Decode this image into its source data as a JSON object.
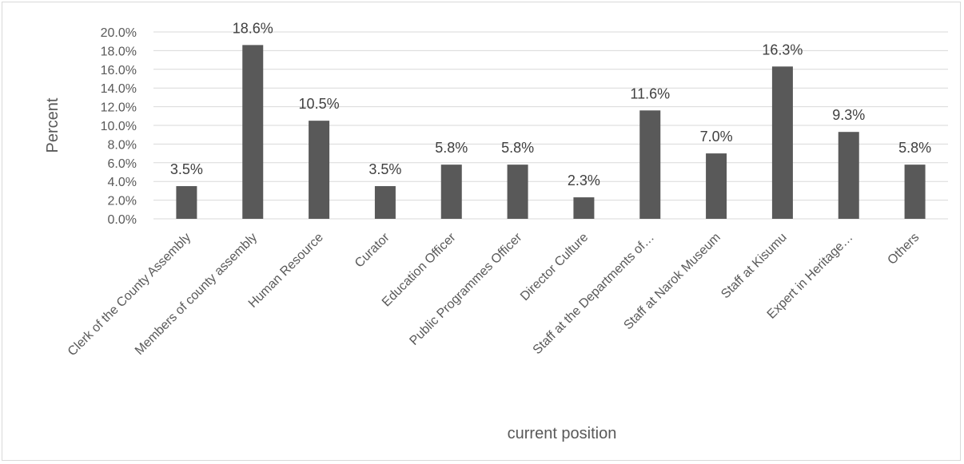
{
  "chart_data": {
    "type": "bar",
    "categories": [
      "Clerk of the County Assembly",
      "Members of county assembly",
      "Human Resource",
      "Curator",
      "Education Officer",
      "Public Programmes Officer",
      "Director Culture",
      "Staff at the Departments of…",
      "Staff at Narok Museum",
      "Staff at Kisumu",
      "Expert in Heritage…",
      "Others"
    ],
    "values": [
      3.5,
      18.6,
      10.5,
      3.5,
      5.8,
      5.8,
      2.3,
      11.6,
      7.0,
      16.3,
      9.3,
      5.8
    ],
    "value_labels": [
      "3.5%",
      "18.6%",
      "10.5%",
      "3.5%",
      "5.8%",
      "5.8%",
      "2.3%",
      "11.6%",
      "7.0%",
      "16.3%",
      "9.3%",
      "5.8%"
    ],
    "y_ticks": [
      0,
      2,
      4,
      6,
      8,
      10,
      12,
      14,
      16,
      18,
      20
    ],
    "y_tick_labels": [
      "0.0%",
      "2.0%",
      "4.0%",
      "6.0%",
      "8.0%",
      "10.0%",
      "12.0%",
      "14.0%",
      "16.0%",
      "18.0%",
      "20.0%"
    ],
    "ylim": [
      0,
      20
    ],
    "title": "",
    "xlabel": "current position",
    "ylabel": "Percent",
    "grid": true,
    "legend": "none",
    "bar_color": "#595959",
    "grid_color": "#d9d9d9"
  }
}
